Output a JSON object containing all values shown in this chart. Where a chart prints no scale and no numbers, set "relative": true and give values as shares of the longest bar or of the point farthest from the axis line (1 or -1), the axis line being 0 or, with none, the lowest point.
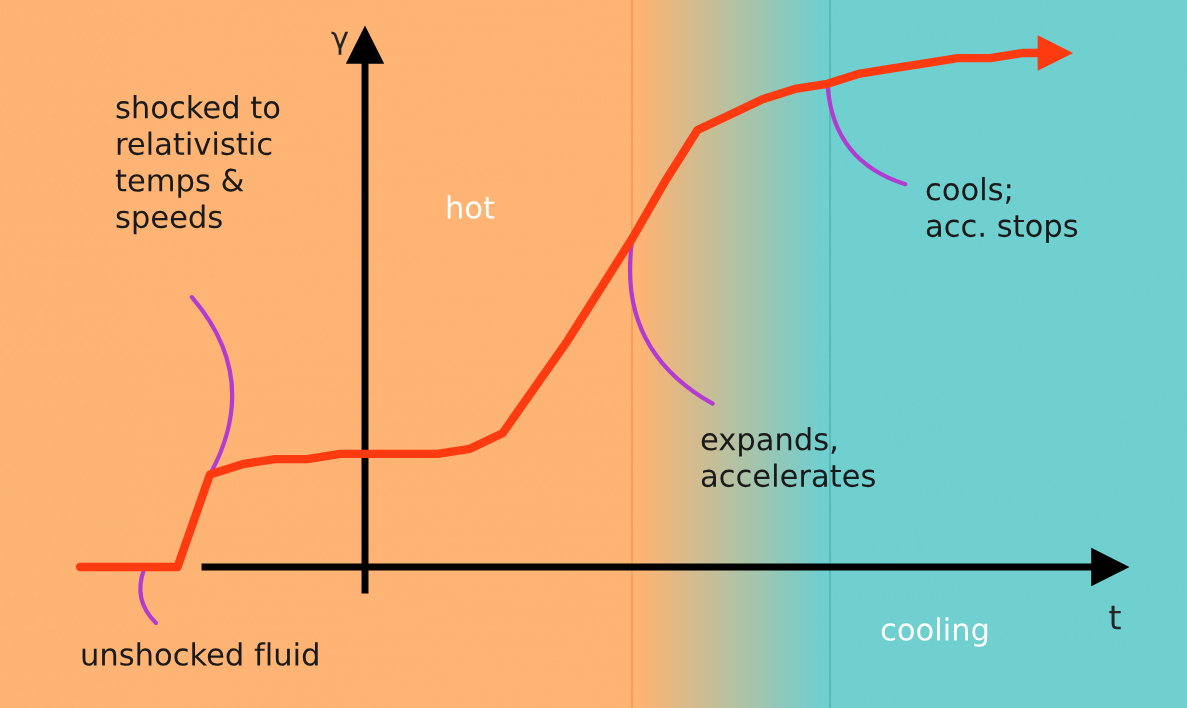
{
  "chart_data": {
    "type": "line",
    "relative": true,
    "xlabel": "t",
    "ylabel": "γ",
    "categories": [
      null,
      null,
      null,
      null,
      null,
      null,
      null,
      null,
      null,
      null,
      null,
      null,
      null,
      null,
      null,
      null,
      null,
      null,
      null,
      null,
      null,
      null,
      null,
      null,
      null,
      null,
      null,
      null,
      null,
      null,
      null
    ],
    "series": [
      {
        "color": "#fe3a10",
        "values": [
          0,
          0,
          0,
          0,
          0.18,
          0.2,
          0.21,
          0.21,
          0.22,
          0.22,
          0.22,
          0.22,
          0.23,
          0.26,
          0.35,
          0.44,
          0.54,
          0.64,
          0.75,
          0.85,
          0.88,
          0.91,
          0.93,
          0.94,
          0.96,
          0.97,
          0.98,
          0.99,
          0.99,
          1.0,
          1.0
        ]
      }
    ],
    "annotations": [
      "shocked to\nrelativistic\ntemps &\nspeeds",
      "unshocked fluid",
      "expands,\naccelerates",
      "cools;\nacc. stops",
      "hot",
      "cooling"
    ],
    "legend": false,
    "marker": "none",
    "line_style": "solid"
  }
}
